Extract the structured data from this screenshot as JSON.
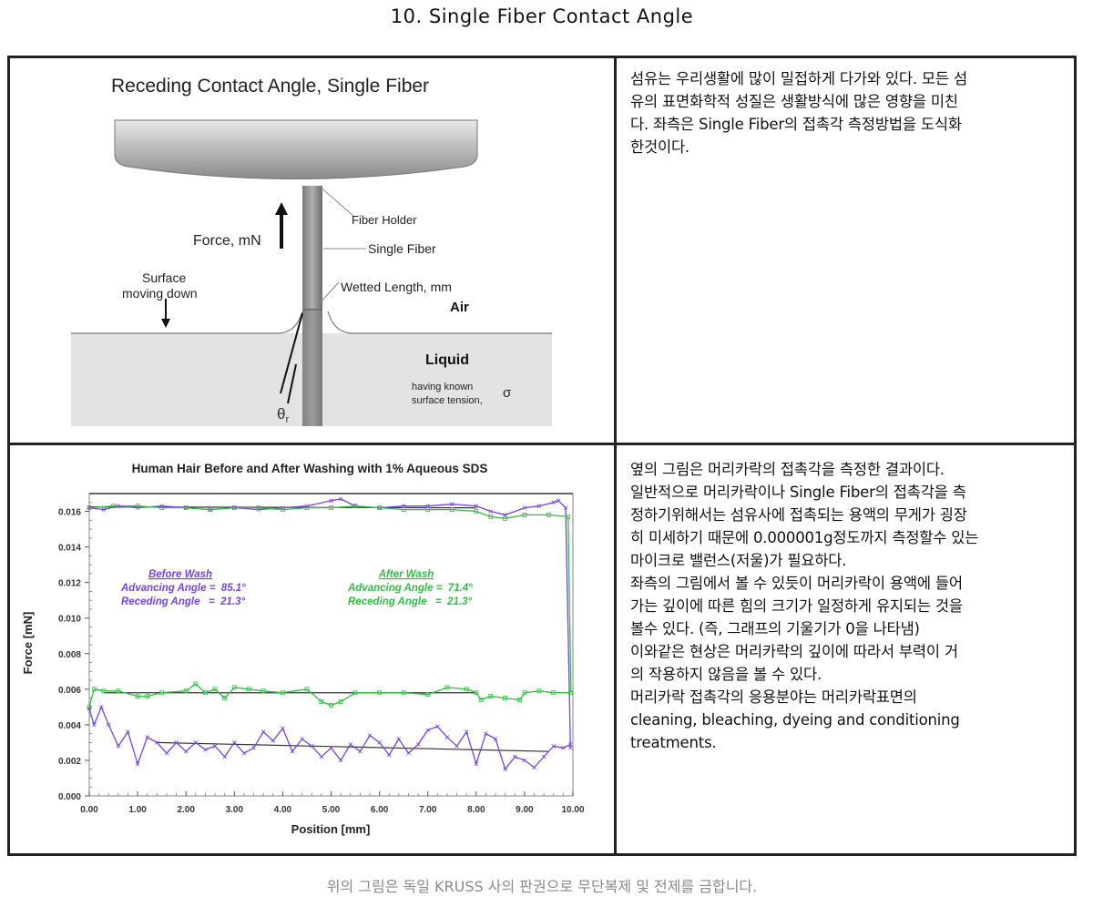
{
  "page": {
    "title": "10. Single Fiber Contact Angle",
    "footer_note": "위의 그림은 독일 KRUSS 사의 판권으로 무단복제 및 전제를 금합니다."
  },
  "diagram": {
    "title": "Receding Contact Angle, Single Fiber",
    "labels": {
      "fiber_holder": "Fiber Holder",
      "force": "Force, mN",
      "single_fiber": "Single Fiber",
      "surface_line1": "Surface",
      "surface_line2": "moving down",
      "wetted_length": "Wetted Length, mm",
      "air": "Air",
      "liquid": "Liquid",
      "liquid_desc_line1": "having known",
      "liquid_desc_line2": "surface tension,",
      "sigma": "σ",
      "theta": "θ",
      "theta_sub": "r"
    },
    "colors": {
      "holder_top": "#e6e6e6",
      "holder_bottom": "#8c8c8c",
      "liquid": "#e3e3e3",
      "fiber": "#8a8a8a"
    }
  },
  "text_panels": {
    "top": [
      "섬유는 우리생활에 많이 밀접하게 다가와 있다. 모든 섬",
      "유의 표면화학적 성질은 생활방식에 많은 영향을 미친",
      "다. 좌측은 Single Fiber의 접촉각 측정방법을 도식화",
      "한것이다."
    ],
    "bottom": [
      "옆의 그림은 머리카락의 접촉각을 측정한 결과이다.",
      "일반적으로 머리카락이나 Single Fiber의 접촉각을 측",
      "정하기위해서는 섬유사에 접촉되는 용액의 무게가 굉장",
      "히 미세하기 때문에 0.000001g정도까지 측정할수 있는",
      "마이크로 밸런스(저울)가 필요하다.",
      "좌측의 그림에서 볼 수 있듯이 머리카락이 용액에 들어",
      "가는 깊이에 따른 힘의 크기가 일정하게 유지되는 것을",
      "볼수 있다. (즉, 그래프의 기울기가 0을 나타냄)",
      "이와같은 현상은 머리카락의 깊이에 따라서 부력이 거",
      "의 작용하지 않음을 볼 수 있다.",
      "머리카락 접촉각의 응용분야는 머리카락표면의",
      "cleaning, bleaching,  dyeing and conditioning",
      "treatments."
    ]
  },
  "chart_data": {
    "type": "line",
    "title": "Human Hair Before and After Washing with 1% Aqueous SDS",
    "xlabel": "Position [mm]",
    "ylabel": "Force [mN]",
    "xlim": [
      0,
      10
    ],
    "ylim": [
      0,
      0.017
    ],
    "x_ticks": [
      "0.00",
      "1.00",
      "2.00",
      "3.00",
      "4.00",
      "5.00",
      "6.00",
      "7.00",
      "8.00",
      "9.00",
      "10.00"
    ],
    "y_ticks": [
      "0.000",
      "0.002",
      "0.004",
      "0.006",
      "0.008",
      "0.010",
      "0.012",
      "0.014",
      "0.016"
    ],
    "grid": false,
    "annotations": [
      {
        "heading": "Before Wash",
        "lines": [
          "Advancing Angle =  85.1°",
          "Receding Angle   =  21.3°"
        ],
        "color": "#7744dd"
      },
      {
        "heading": "After Wash",
        "lines": [
          "Advancing Angle =  71.4°",
          "Receding Angle   =  21.3°"
        ],
        "color": "#33bb44"
      }
    ],
    "series": [
      {
        "name": "Before Wash - Advancing",
        "color": "#7744dd",
        "x": [
          0.0,
          0.3,
          0.6,
          1.0,
          1.5,
          2.0,
          2.5,
          3.0,
          3.5,
          4.0,
          4.5,
          5.0,
          5.2,
          5.5,
          6.0,
          6.5,
          7.0,
          7.5,
          8.0,
          8.3,
          8.6,
          9.0,
          9.3,
          9.6,
          9.7,
          9.85,
          9.95
        ],
        "y": [
          0.0162,
          0.0161,
          0.0163,
          0.0162,
          0.0163,
          0.0162,
          0.0161,
          0.0162,
          0.0161,
          0.0162,
          0.0163,
          0.0166,
          0.0167,
          0.0163,
          0.0162,
          0.0163,
          0.0163,
          0.0164,
          0.0163,
          0.016,
          0.0158,
          0.0162,
          0.0163,
          0.0165,
          0.0166,
          0.0162,
          0.0027
        ]
      },
      {
        "name": "After Wash - Advancing",
        "color": "#33bb44",
        "x": [
          0.0,
          0.5,
          1.0,
          1.5,
          2.0,
          2.5,
          3.0,
          3.5,
          4.0,
          4.5,
          5.0,
          5.5,
          6.0,
          6.5,
          7.0,
          7.5,
          8.0,
          8.3,
          8.6,
          9.0,
          9.5,
          9.9
        ],
        "y": [
          0.0162,
          0.0163,
          0.0163,
          0.0162,
          0.0162,
          0.0161,
          0.0162,
          0.0162,
          0.0161,
          0.0162,
          0.0162,
          0.0163,
          0.0162,
          0.0161,
          0.0161,
          0.0161,
          0.016,
          0.0157,
          0.0156,
          0.0158,
          0.0158,
          0.0157
        ]
      },
      {
        "name": "After Wash - Receding",
        "color": "#33bb44",
        "x": [
          0.0,
          0.1,
          0.3,
          0.6,
          1.0,
          1.2,
          1.5,
          2.0,
          2.2,
          2.4,
          2.6,
          2.8,
          3.0,
          3.3,
          3.6,
          4.0,
          4.5,
          4.8,
          5.0,
          5.2,
          5.5,
          6.0,
          6.5,
          7.0,
          7.4,
          7.8,
          8.0,
          8.1,
          8.3,
          8.6,
          8.9,
          9.0,
          9.3,
          9.6,
          9.95
        ],
        "y": [
          0.005,
          0.006,
          0.0059,
          0.0059,
          0.0056,
          0.0056,
          0.0058,
          0.0059,
          0.0063,
          0.0058,
          0.006,
          0.0055,
          0.0061,
          0.006,
          0.0059,
          0.0058,
          0.006,
          0.0053,
          0.0051,
          0.0053,
          0.0058,
          0.0058,
          0.0058,
          0.0057,
          0.0061,
          0.006,
          0.0058,
          0.0054,
          0.0056,
          0.0055,
          0.0054,
          0.0058,
          0.0059,
          0.0058,
          0.0058
        ]
      },
      {
        "name": "Before Wash - Receding",
        "color": "#7744dd",
        "x": [
          0.0,
          0.1,
          0.25,
          0.4,
          0.6,
          0.8,
          1.0,
          1.2,
          1.4,
          1.6,
          1.8,
          2.0,
          2.2,
          2.4,
          2.6,
          2.8,
          3.0,
          3.2,
          3.4,
          3.6,
          3.8,
          4.0,
          4.2,
          4.4,
          4.6,
          4.8,
          5.0,
          5.2,
          5.4,
          5.6,
          5.8,
          6.0,
          6.2,
          6.4,
          6.6,
          6.8,
          7.0,
          7.2,
          7.4,
          7.6,
          7.8,
          8.0,
          8.2,
          8.4,
          8.6,
          8.8,
          9.0,
          9.2,
          9.4,
          9.6,
          9.8,
          9.95
        ],
        "y": [
          0.0049,
          0.004,
          0.005,
          0.004,
          0.0028,
          0.0036,
          0.0018,
          0.0033,
          0.003,
          0.0024,
          0.003,
          0.0025,
          0.003,
          0.0026,
          0.0028,
          0.0022,
          0.003,
          0.0024,
          0.0027,
          0.0036,
          0.0031,
          0.0038,
          0.0025,
          0.0032,
          0.0028,
          0.0022,
          0.0027,
          0.002,
          0.0029,
          0.0025,
          0.0034,
          0.003,
          0.0023,
          0.0032,
          0.0024,
          0.0029,
          0.0037,
          0.0039,
          0.0033,
          0.0028,
          0.0036,
          0.0018,
          0.0035,
          0.0032,
          0.0015,
          0.0022,
          0.002,
          0.0016,
          0.0022,
          0.0028,
          0.0027,
          0.0029
        ]
      }
    ],
    "fit_lines": [
      {
        "x": [
          0.0,
          8.0
        ],
        "y": [
          0.01625,
          0.0162
        ]
      },
      {
        "x": [
          0.3,
          8.0
        ],
        "y": [
          0.0058,
          0.0058
        ]
      },
      {
        "x": [
          1.4,
          9.5
        ],
        "y": [
          0.003,
          0.0025
        ]
      }
    ]
  }
}
